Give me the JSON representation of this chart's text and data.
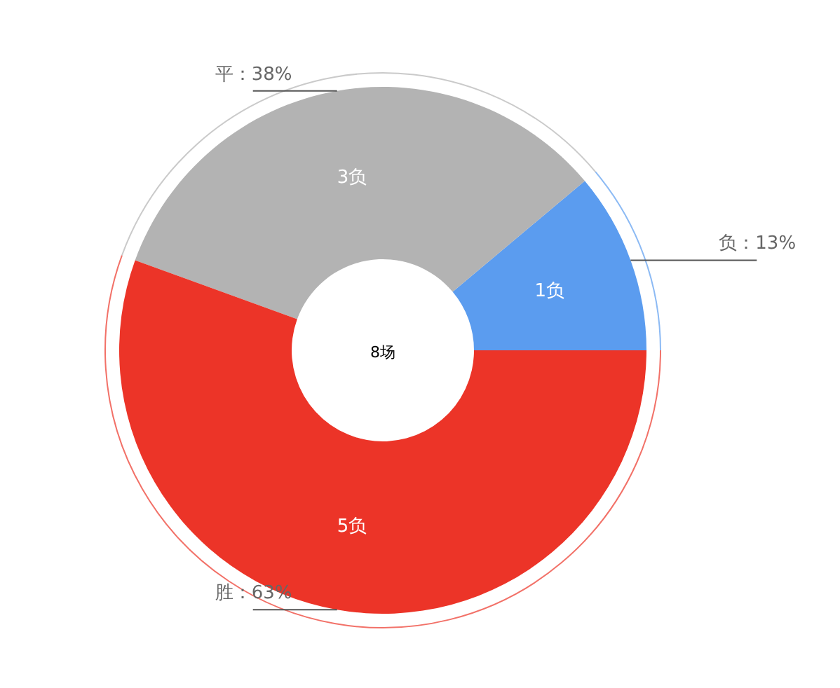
{
  "chart_data": {
    "type": "donut",
    "categories": [
      "负",
      "平",
      "胜"
    ],
    "values": [
      1,
      3,
      5
    ],
    "colors": [
      "#5b9cef",
      "#b3b3b3",
      "#ec3428"
    ],
    "value_labels": [
      "1负",
      "3负",
      "5负"
    ],
    "annotations": [
      {
        "text": "：13%",
        "x": "负"
      },
      {
        "text": "：38%",
        "x": "平"
      },
      {
        "text": "：63%",
        "x": "胜"
      },
      "8场"
    ]
  }
}
